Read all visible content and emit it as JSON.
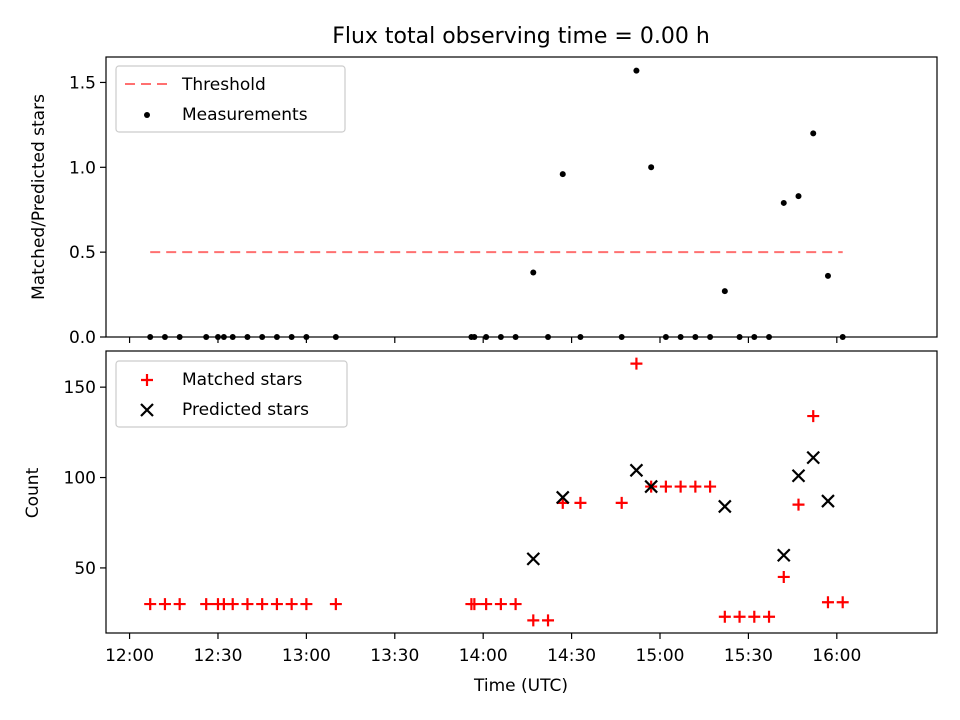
{
  "chart_data": [
    {
      "type": "line+scatter",
      "title": "Flux total observing time = 0.00 h",
      "ylabel": "Matched/Predicted stars",
      "xlim_minutes": [
        712,
        994
      ],
      "ylim": [
        0,
        1.65
      ],
      "yticks": [
        {
          "value": 0.0,
          "label": "0.0"
        },
        {
          "value": 0.5,
          "label": "0.5"
        },
        {
          "value": 1.0,
          "label": "1.0"
        },
        {
          "value": 1.5,
          "label": "1.5"
        }
      ],
      "legend": {
        "placement": "top-left",
        "entries": [
          {
            "label": "Threshold",
            "style": "dashed-line",
            "color": "#ff7070"
          },
          {
            "label": "Measurements",
            "style": "dot",
            "color": "#000000"
          }
        ]
      },
      "threshold": {
        "value": 0.5,
        "x_start": "12:07",
        "x_end": "16:02",
        "color": "#ff7070"
      },
      "series": [
        {
          "name": "Measurements",
          "color": "#000000",
          "points": [
            [
              "12:07",
              0
            ],
            [
              "12:12",
              0
            ],
            [
              "12:17",
              0
            ],
            [
              "12:26",
              0
            ],
            [
              "12:30",
              0
            ],
            [
              "12:32",
              0
            ],
            [
              "12:35",
              0
            ],
            [
              "12:40",
              0
            ],
            [
              "12:45",
              0
            ],
            [
              "12:50",
              0
            ],
            [
              "12:55",
              0
            ],
            [
              "13:00",
              0
            ],
            [
              "13:10",
              0
            ],
            [
              "13:56",
              0
            ],
            [
              "13:57",
              0
            ],
            [
              "14:01",
              0
            ],
            [
              "14:06",
              0
            ],
            [
              "14:11",
              0
            ],
            [
              "14:17",
              0.38
            ],
            [
              "14:22",
              0
            ],
            [
              "14:27",
              0.96
            ],
            [
              "14:33",
              0
            ],
            [
              "14:47",
              0
            ],
            [
              "14:52",
              1.57
            ],
            [
              "14:57",
              1.0
            ],
            [
              "15:02",
              0
            ],
            [
              "15:07",
              0
            ],
            [
              "15:12",
              0
            ],
            [
              "15:17",
              0
            ],
            [
              "15:22",
              0.27
            ],
            [
              "15:27",
              0
            ],
            [
              "15:32",
              0
            ],
            [
              "15:37",
              0
            ],
            [
              "15:42",
              0.79
            ],
            [
              "15:47",
              0.83
            ],
            [
              "15:52",
              1.2
            ],
            [
              "15:57",
              0.36
            ],
            [
              "16:02",
              0
            ]
          ]
        }
      ]
    },
    {
      "type": "scatter",
      "xlabel": "Time (UTC)",
      "ylabel": "Count",
      "xlim_minutes": [
        712,
        994
      ],
      "ylim": [
        14,
        170
      ],
      "yticks": [
        {
          "value": 50,
          "label": "50"
        },
        {
          "value": 100,
          "label": "100"
        },
        {
          "value": 150,
          "label": "150"
        }
      ],
      "xticks": [
        {
          "value": "12:00",
          "label": "12:00"
        },
        {
          "value": "12:30",
          "label": "12:30"
        },
        {
          "value": "13:00",
          "label": "13:00"
        },
        {
          "value": "13:30",
          "label": "13:30"
        },
        {
          "value": "14:00",
          "label": "14:00"
        },
        {
          "value": "14:30",
          "label": "14:30"
        },
        {
          "value": "15:00",
          "label": "15:00"
        },
        {
          "value": "15:30",
          "label": "15:30"
        },
        {
          "value": "16:00",
          "label": "16:00"
        }
      ],
      "legend": {
        "placement": "top-left",
        "entries": [
          {
            "label": "Matched stars",
            "style": "plus",
            "color": "#ff0000"
          },
          {
            "label": "Predicted stars",
            "style": "x",
            "color": "#000000"
          }
        ]
      },
      "series": [
        {
          "name": "Matched stars",
          "marker": "plus",
          "color": "#ff0000",
          "points": [
            [
              "12:07",
              30
            ],
            [
              "12:12",
              30
            ],
            [
              "12:17",
              30
            ],
            [
              "12:26",
              30
            ],
            [
              "12:30",
              30
            ],
            [
              "12:32",
              30
            ],
            [
              "12:35",
              30
            ],
            [
              "12:40",
              30
            ],
            [
              "12:45",
              30
            ],
            [
              "12:50",
              30
            ],
            [
              "12:55",
              30
            ],
            [
              "13:00",
              30
            ],
            [
              "13:10",
              30
            ],
            [
              "13:56",
              30
            ],
            [
              "13:57",
              30
            ],
            [
              "14:01",
              30
            ],
            [
              "14:06",
              30
            ],
            [
              "14:11",
              30
            ],
            [
              "14:17",
              21
            ],
            [
              "14:22",
              21
            ],
            [
              "14:27",
              86
            ],
            [
              "14:33",
              86
            ],
            [
              "14:47",
              86
            ],
            [
              "14:52",
              163
            ],
            [
              "14:57",
              95
            ],
            [
              "15:02",
              95
            ],
            [
              "15:07",
              95
            ],
            [
              "15:12",
              95
            ],
            [
              "15:17",
              95
            ],
            [
              "15:22",
              23
            ],
            [
              "15:27",
              23
            ],
            [
              "15:32",
              23
            ],
            [
              "15:37",
              23
            ],
            [
              "15:42",
              45
            ],
            [
              "15:47",
              85
            ],
            [
              "15:52",
              134
            ],
            [
              "15:57",
              31
            ],
            [
              "16:02",
              31
            ]
          ]
        },
        {
          "name": "Predicted stars",
          "marker": "x",
          "color": "#000000",
          "points": [
            [
              "14:17",
              55
            ],
            [
              "14:27",
              89
            ],
            [
              "14:52",
              104
            ],
            [
              "14:57",
              95
            ],
            [
              "15:22",
              84
            ],
            [
              "15:42",
              57
            ],
            [
              "15:47",
              101
            ],
            [
              "15:52",
              111
            ],
            [
              "15:57",
              87
            ]
          ]
        }
      ]
    }
  ]
}
